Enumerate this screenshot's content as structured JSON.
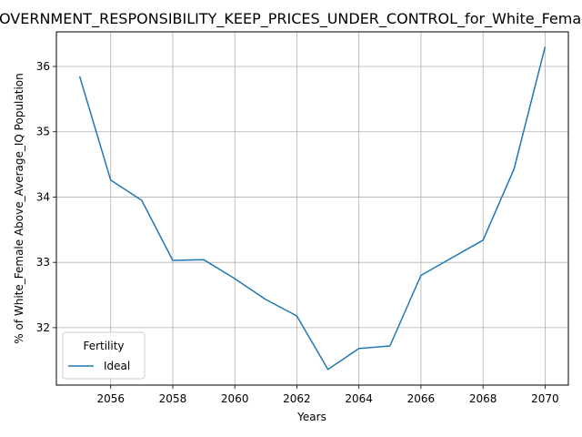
{
  "chart_data": {
    "type": "line",
    "title": "GOVERNMENT_RESPONSIBILITY_KEEP_PRICES_UNDER_CONTROL_for_White_Female",
    "xlabel": "Years",
    "ylabel": "% of White_Female Above_Average_IQ Population",
    "xlim": [
      2054.25,
      2070.75
    ],
    "ylim": [
      31.12,
      36.53
    ],
    "x_ticks": [
      2056,
      2058,
      2060,
      2062,
      2064,
      2066,
      2068,
      2070
    ],
    "y_ticks": [
      32,
      33,
      34,
      35,
      36
    ],
    "grid": true,
    "legend": {
      "title": "Fertility",
      "placement": "lower-left"
    },
    "series": [
      {
        "name": "Ideal",
        "color": "#1f77b4",
        "x": [
          2055,
          2056,
          2057,
          2058,
          2059,
          2060,
          2061,
          2062,
          2063,
          2064,
          2065,
          2066,
          2067,
          2068,
          2069,
          2070
        ],
        "y": [
          35.85,
          34.26,
          33.95,
          33.03,
          33.04,
          32.75,
          32.43,
          32.18,
          31.36,
          31.68,
          31.72,
          32.8,
          33.07,
          33.34,
          34.43,
          36.3
        ]
      }
    ]
  }
}
